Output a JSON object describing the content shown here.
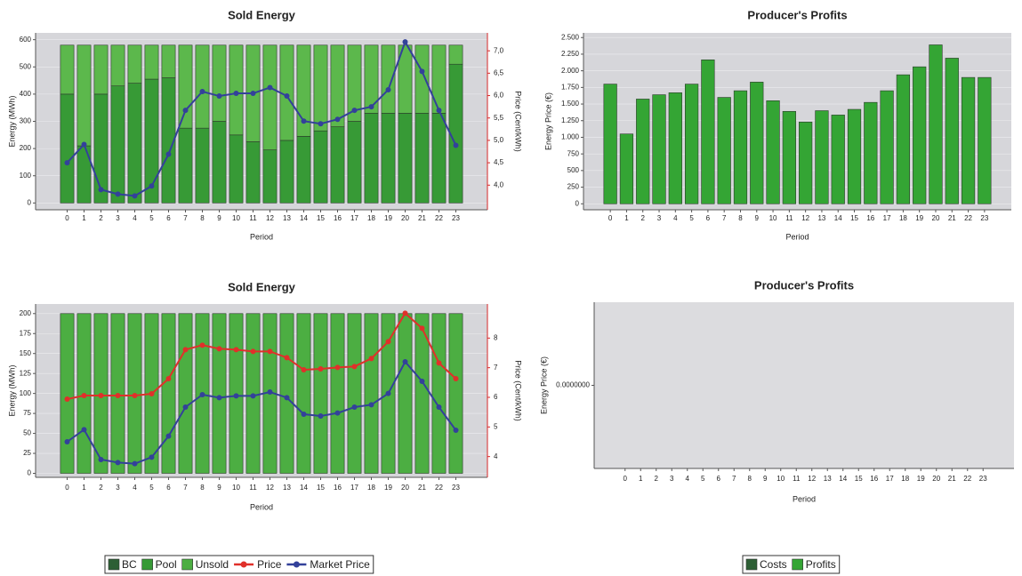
{
  "chart_data": [
    {
      "type": "bar",
      "title": "Sold Energy",
      "y_label": "Energy (MWh)",
      "y2_label": "Price (Cent/kWh)",
      "x_label": "Period",
      "stacked": true,
      "grid": true,
      "y2_color": "#d62728",
      "categories": [
        "0",
        "1",
        "2",
        "3",
        "4",
        "5",
        "6",
        "7",
        "8",
        "9",
        "10",
        "11",
        "12",
        "13",
        "14",
        "15",
        "16",
        "17",
        "18",
        "19",
        "20",
        "21",
        "22",
        "23"
      ],
      "ylim": [
        -25,
        625
      ],
      "yticks": [
        0,
        100,
        200,
        300,
        400,
        500,
        600
      ],
      "y2lim": [
        3.45,
        7.4
      ],
      "y2ticks": [
        {
          "value": 4.0,
          "label": "4,0"
        },
        {
          "value": 4.5,
          "label": "4,5"
        },
        {
          "value": 5.0,
          "label": "5,0"
        },
        {
          "value": 5.5,
          "label": "5,5"
        },
        {
          "value": 6.0,
          "label": "6,0"
        },
        {
          "value": 6.5,
          "label": "6,5"
        },
        {
          "value": 7.0,
          "label": "7,0"
        }
      ],
      "series": [
        {
          "name": "BC",
          "type": "bar",
          "color": "#2d5f35",
          "values": [
            0,
            0,
            0,
            0,
            0,
            0,
            0,
            0,
            0,
            0,
            0,
            0,
            0,
            0,
            0,
            0,
            0,
            0,
            0,
            0,
            0,
            0,
            0,
            0
          ]
        },
        {
          "name": "Pool",
          "type": "bar",
          "color": "#379a36",
          "values": [
            400,
            210,
            400,
            430,
            440,
            455,
            460,
            275,
            275,
            300,
            250,
            225,
            195,
            230,
            245,
            265,
            280,
            300,
            330,
            330,
            330,
            330,
            330,
            510
          ]
        },
        {
          "name": "Unsold",
          "type": "bar",
          "color": "#5cb84c",
          "values": [
            180,
            370,
            180,
            150,
            140,
            125,
            120,
            305,
            305,
            280,
            330,
            355,
            385,
            350,
            335,
            315,
            300,
            280,
            250,
            250,
            250,
            250,
            250,
            70
          ]
        },
        {
          "name": "Market Price",
          "type": "line",
          "axis": "y2",
          "color": "#33419a",
          "values": [
            4.5,
            4.91,
            3.9,
            3.8,
            3.76,
            3.98,
            4.69,
            5.67,
            6.09,
            5.99,
            6.05,
            6.05,
            6.18,
            5.99,
            5.43,
            5.37,
            5.47,
            5.67,
            5.75,
            6.13,
            7.2,
            6.54,
            5.67,
            4.89
          ]
        }
      ]
    },
    {
      "type": "bar",
      "title": "Producer's Profits",
      "y_label": "Energy Price (€)",
      "x_label": "Period",
      "grid": true,
      "categories": [
        "0",
        "1",
        "2",
        "3",
        "4",
        "5",
        "6",
        "7",
        "8",
        "9",
        "10",
        "11",
        "12",
        "13",
        "14",
        "15",
        "16",
        "17",
        "18",
        "19",
        "20",
        "21",
        "22",
        "23"
      ],
      "ylim": [
        -90,
        2570
      ],
      "yticks": [
        0,
        250,
        500,
        750,
        {
          "value": 1000,
          "label": "1.000"
        },
        {
          "value": 1250,
          "label": "1.250"
        },
        {
          "value": 1500,
          "label": "1.500"
        },
        {
          "value": 1750,
          "label": "1.750"
        },
        {
          "value": 2000,
          "label": "2.000"
        },
        {
          "value": 2250,
          "label": "2.250"
        },
        {
          "value": 2500,
          "label": "2.500"
        }
      ],
      "series": [
        {
          "name": "Profits",
          "type": "bar",
          "color": "#34a534",
          "values": [
            1800,
            1050,
            1575,
            1640,
            1670,
            1800,
            2165,
            1600,
            1700,
            1830,
            1550,
            1390,
            1230,
            1400,
            1335,
            1420,
            1525,
            1700,
            1940,
            2060,
            2390,
            2190,
            1900,
            1900
          ]
        }
      ]
    },
    {
      "type": "bar",
      "title": "Sold Energy",
      "y_label": "Energy (MWh)",
      "y2_label": "Price (Cent/kWh)",
      "x_label": "Period",
      "stacked": true,
      "grid": true,
      "y2_color": "#d62728",
      "categories": [
        "0",
        "1",
        "2",
        "3",
        "4",
        "5",
        "6",
        "7",
        "8",
        "9",
        "10",
        "11",
        "12",
        "13",
        "14",
        "15",
        "16",
        "17",
        "18",
        "19",
        "20",
        "21",
        "22",
        "23"
      ],
      "ylim": [
        -5,
        212
      ],
      "yticks": [
        0,
        25,
        50,
        75,
        100,
        125,
        150,
        175,
        200
      ],
      "y2lim": [
        3.3,
        9.15
      ],
      "y2ticks": [
        4,
        5,
        6,
        7,
        8
      ],
      "series": [
        {
          "name": "BC",
          "type": "bar",
          "color": "#2d5f35",
          "values": [
            0,
            0,
            0,
            0,
            0,
            0,
            0,
            0,
            0,
            0,
            0,
            0,
            0,
            0,
            0,
            0,
            0,
            0,
            0,
            0,
            0,
            0,
            0,
            0
          ]
        },
        {
          "name": "Pool",
          "type": "bar",
          "color": "#379a36",
          "values": [
            0,
            0,
            0,
            0,
            0,
            0,
            0,
            0,
            0,
            0,
            0,
            0,
            0,
            0,
            0,
            0,
            0,
            0,
            0,
            0,
            0,
            0,
            0,
            0
          ]
        },
        {
          "name": "Unsold",
          "type": "bar",
          "color": "#4cae42",
          "values": [
            200,
            200,
            200,
            200,
            200,
            200,
            200,
            200,
            200,
            200,
            200,
            200,
            200,
            200,
            200,
            200,
            200,
            200,
            200,
            200,
            200,
            200,
            200,
            200
          ]
        },
        {
          "name": "Price",
          "type": "line",
          "axis": "y2",
          "color": "#e0302a",
          "values": [
            5.94,
            6.06,
            6.06,
            6.06,
            6.06,
            6.12,
            6.63,
            7.61,
            7.76,
            7.64,
            7.61,
            7.55,
            7.55,
            7.34,
            6.93,
            6.96,
            7.01,
            7.04,
            7.31,
            7.88,
            8.84,
            8.33,
            7.16,
            6.63
          ]
        },
        {
          "name": "Market Price",
          "type": "line",
          "axis": "y2",
          "color": "#33419a",
          "values": [
            4.5,
            4.91,
            3.9,
            3.8,
            3.76,
            3.98,
            4.69,
            5.67,
            6.09,
            5.99,
            6.05,
            6.05,
            6.18,
            5.99,
            5.43,
            5.37,
            5.47,
            5.67,
            5.75,
            6.13,
            7.2,
            6.54,
            5.67,
            4.89
          ]
        }
      ]
    },
    {
      "type": "bar",
      "title": "Producer's Profits",
      "y_label": "Energy Price (€)",
      "x_label": "Period",
      "grid": false,
      "stacked": true,
      "categories": [
        "0",
        "1",
        "2",
        "3",
        "4",
        "5",
        "6",
        "7",
        "8",
        "9",
        "10",
        "11",
        "12",
        "13",
        "14",
        "15",
        "16",
        "17",
        "18",
        "19",
        "20",
        "21",
        "22",
        "23"
      ],
      "ylim": [
        -1,
        1
      ],
      "yticks": [
        {
          "value": 0,
          "label": "0.0000000"
        }
      ],
      "series": [
        {
          "name": "Costs",
          "type": "bar",
          "color": "#2d5f35",
          "values": [
            0,
            0,
            0,
            0,
            0,
            0,
            0,
            0,
            0,
            0,
            0,
            0,
            0,
            0,
            0,
            0,
            0,
            0,
            0,
            0,
            0,
            0,
            0,
            0
          ]
        },
        {
          "name": "Profits",
          "type": "bar",
          "color": "#34a534",
          "values": [
            0,
            0,
            0,
            0,
            0,
            0,
            0,
            0,
            0,
            0,
            0,
            0,
            0,
            0,
            0,
            0,
            0,
            0,
            0,
            0,
            0,
            0,
            0,
            0
          ]
        }
      ]
    }
  ]
}
